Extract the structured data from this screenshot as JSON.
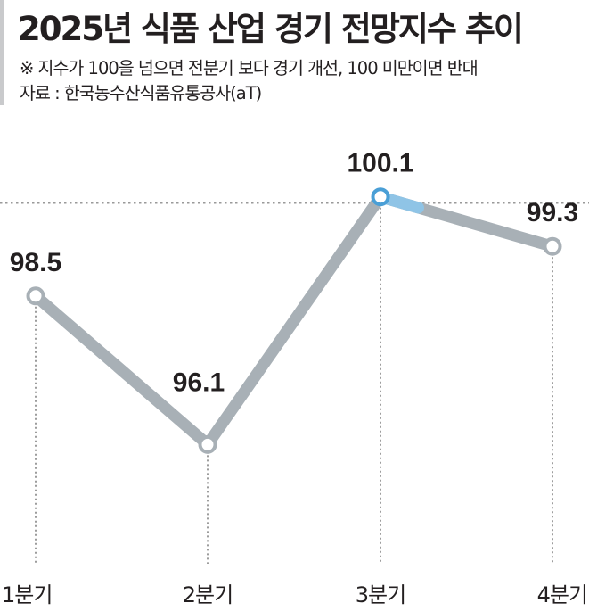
{
  "header": {
    "title": "2025년 식품 산업 경기 전망지수 추이",
    "note": "※ 지수가 100을 넘으면 전분기 보다 경기 개선, 100 미만이면 반대",
    "source": "자료 : 한국농수산식품유통공사(aT)"
  },
  "colors": {
    "line": "#a8b0b6",
    "marker_highlight": "#4a9fd6",
    "marker_default": "#a8b0b6",
    "text": "#231f20"
  },
  "chart_data": {
    "type": "line",
    "categories": [
      "1분기",
      "2분기",
      "3분기",
      "4분기"
    ],
    "values": [
      98.5,
      96.1,
      100.1,
      99.3
    ],
    "value_labels": [
      "98.5",
      "96.1",
      "100.1",
      "99.3"
    ],
    "reference_line": 100,
    "highlight_index": 2,
    "ylim": [
      95.5,
      100.6
    ],
    "grid": false
  }
}
